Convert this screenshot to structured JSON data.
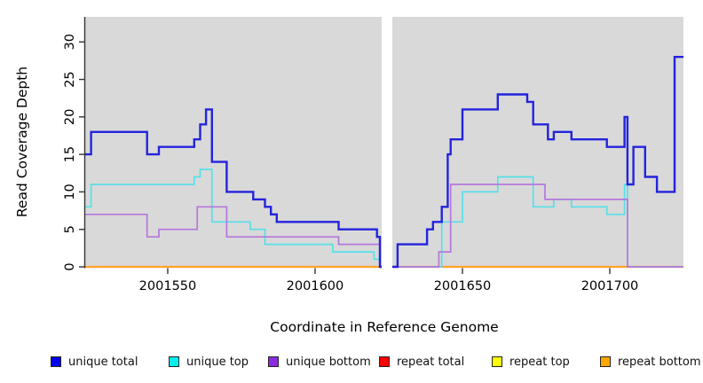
{
  "chart_data": {
    "type": "line",
    "subtype": "step-coverage",
    "title": "",
    "xlabel": "Coordinate in Reference Genome",
    "ylabel": "Read Coverage Depth",
    "xlim": [
      2001522,
      2001725
    ],
    "ylim": [
      0,
      33
    ],
    "x_ticks": [
      2001550,
      2001600,
      2001650,
      2001700
    ],
    "x_tick_labels": [
      "2001550",
      "2001600",
      "2001650",
      "2001700"
    ],
    "y_ticks": [
      0,
      5,
      10,
      15,
      20,
      25,
      30
    ],
    "y_tick_labels": [
      "0",
      "5",
      "10",
      "15",
      "20",
      "25",
      "30"
    ],
    "panel_bg": "#d9d9d9",
    "axis_color": "#333333",
    "grid": "off",
    "legend_position": "bottom",
    "gap_band_x": [
      2001622.6,
      2001626.2
    ],
    "series": [
      {
        "name": "repeat top",
        "color": "#f5f53a",
        "line_width": 1.7,
        "zorder": 0,
        "points": [
          [
            2001522,
            0
          ],
          [
            2001725,
            0
          ]
        ]
      },
      {
        "name": "repeat total",
        "color": "#e02020",
        "line_width": 1.7,
        "zorder": 1,
        "points": [
          [
            2001522,
            0
          ],
          [
            2001725,
            0
          ]
        ]
      },
      {
        "name": "repeat bottom",
        "color": "#ffa227",
        "line_width": 2.2,
        "zorder": 2,
        "points": [
          [
            2001522,
            0
          ],
          [
            2001725,
            0
          ]
        ]
      },
      {
        "name": "unique top",
        "color": "#58dfe8",
        "line_width": 1.7,
        "zorder": 3,
        "points": [
          [
            2001522,
            8
          ],
          [
            2001524,
            11
          ],
          [
            2001559,
            12
          ],
          [
            2001561,
            13
          ],
          [
            2001565,
            6
          ],
          [
            2001578,
            5
          ],
          [
            2001583,
            3
          ],
          [
            2001606,
            2
          ],
          [
            2001620,
            1
          ],
          [
            2001622,
            0
          ],
          [
            2001643,
            6
          ],
          [
            2001650,
            10
          ],
          [
            2001662,
            12
          ],
          [
            2001674,
            8
          ],
          [
            2001681,
            9
          ],
          [
            2001687,
            8
          ],
          [
            2001699,
            7
          ],
          [
            2001705,
            11
          ],
          [
            2001706,
            0
          ],
          [
            2001725,
            0
          ]
        ]
      },
      {
        "name": "unique bottom",
        "color": "#b577dc",
        "line_width": 1.7,
        "zorder": 4,
        "points": [
          [
            2001522,
            7
          ],
          [
            2001543,
            4
          ],
          [
            2001547,
            5
          ],
          [
            2001560,
            8
          ],
          [
            2001570,
            4
          ],
          [
            2001608,
            3
          ],
          [
            2001622,
            0
          ],
          [
            2001642,
            2
          ],
          [
            2001646,
            11
          ],
          [
            2001678,
            9
          ],
          [
            2001706,
            0
          ],
          [
            2001725,
            0
          ]
        ]
      },
      {
        "name": "unique total",
        "color": "#2323dd",
        "line_width": 2.4,
        "zorder": 5,
        "points": [
          [
            2001522,
            15
          ],
          [
            2001524,
            18
          ],
          [
            2001543,
            15
          ],
          [
            2001547,
            16
          ],
          [
            2001559,
            17
          ],
          [
            2001561,
            19
          ],
          [
            2001563,
            21
          ],
          [
            2001565,
            14
          ],
          [
            2001570,
            10
          ],
          [
            2001579,
            9
          ],
          [
            2001583,
            8
          ],
          [
            2001585,
            7
          ],
          [
            2001587,
            6
          ],
          [
            2001608,
            5
          ],
          [
            2001621,
            4
          ],
          [
            2001622,
            0
          ],
          [
            2001628,
            3
          ],
          [
            2001638,
            5
          ],
          [
            2001640,
            6
          ],
          [
            2001643,
            8
          ],
          [
            2001645,
            15
          ],
          [
            2001646,
            17
          ],
          [
            2001650,
            21
          ],
          [
            2001662,
            23
          ],
          [
            2001672,
            22
          ],
          [
            2001674,
            19
          ],
          [
            2001679,
            17
          ],
          [
            2001681,
            18
          ],
          [
            2001687,
            17
          ],
          [
            2001699,
            16
          ],
          [
            2001705,
            20
          ],
          [
            2001706,
            11
          ],
          [
            2001708,
            16
          ],
          [
            2001712,
            12
          ],
          [
            2001716,
            10
          ],
          [
            2001722,
            28
          ],
          [
            2001725,
            28
          ]
        ]
      }
    ]
  },
  "legend": {
    "items": [
      {
        "label": "unique total",
        "color": "#0000ee"
      },
      {
        "label": "unique top",
        "color": "#00eeee"
      },
      {
        "label": "unique bottom",
        "color": "#8b2be2"
      },
      {
        "label": "repeat total",
        "color": "#ff0000"
      },
      {
        "label": "repeat top",
        "color": "#ffff00"
      },
      {
        "label": "repeat bottom",
        "color": "#ffa500"
      }
    ]
  }
}
